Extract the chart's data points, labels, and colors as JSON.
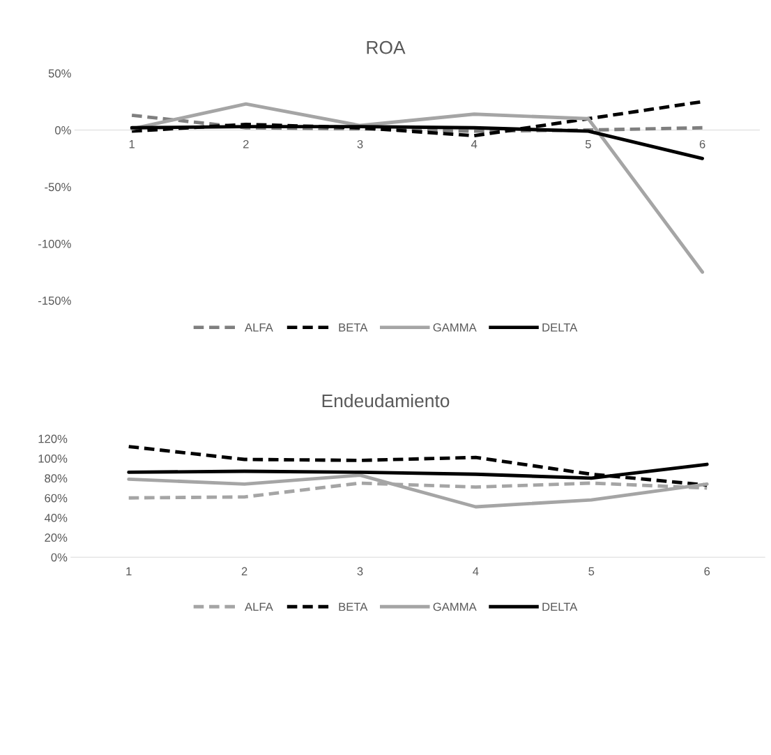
{
  "chart_data": [
    {
      "type": "line",
      "title": "ROA",
      "categories": [
        "1",
        "2",
        "3",
        "4",
        "5",
        "6"
      ],
      "series": [
        {
          "name": "ALFA",
          "color": "#7f7f7f",
          "line_style": "dashed",
          "values": [
            13,
            2,
            1,
            -1,
            0,
            2
          ]
        },
        {
          "name": "BETA",
          "color": "#000000",
          "line_style": "dashed",
          "values": [
            -1,
            5,
            2,
            -5,
            10,
            25
          ]
        },
        {
          "name": "GAMMA",
          "color": "#a5a5a5",
          "line_style": "solid",
          "values": [
            1,
            23,
            4,
            14,
            10,
            -125
          ]
        },
        {
          "name": "DELTA",
          "color": "#000000",
          "line_style": "solid",
          "values": [
            2,
            3,
            3,
            2,
            -1,
            -25
          ]
        }
      ],
      "ylim": [
        -150,
        50
      ],
      "yticks": [
        {
          "value": -150,
          "label": "-150%"
        },
        {
          "value": -100,
          "label": "-100%"
        },
        {
          "value": -50,
          "label": "-50%"
        },
        {
          "value": 0,
          "label": "0%"
        },
        {
          "value": 50,
          "label": "50%"
        }
      ],
      "legend": "bottom",
      "grid": false,
      "marker": "none"
    },
    {
      "type": "line",
      "title": "Endeudamiento",
      "categories": [
        "1",
        "2",
        "3",
        "4",
        "5",
        "6"
      ],
      "series": [
        {
          "name": "ALFA",
          "color": "#a5a5a5",
          "line_style": "dashed",
          "values": [
            60,
            61,
            75,
            71,
            75,
            70
          ]
        },
        {
          "name": "BETA",
          "color": "#000000",
          "line_style": "dashed",
          "values": [
            112,
            99,
            98,
            101,
            84,
            73
          ]
        },
        {
          "name": "GAMMA",
          "color": "#a5a5a5",
          "line_style": "solid",
          "values": [
            79,
            74,
            83,
            51,
            58,
            74
          ]
        },
        {
          "name": "DELTA",
          "color": "#000000",
          "line_style": "solid",
          "values": [
            86,
            87,
            86,
            84,
            80,
            94
          ]
        }
      ],
      "ylim": [
        0,
        120
      ],
      "yticks": [
        {
          "value": 0,
          "label": "0%"
        },
        {
          "value": 20,
          "label": "20%"
        },
        {
          "value": 40,
          "label": "40%"
        },
        {
          "value": 60,
          "label": "60%"
        },
        {
          "value": 80,
          "label": "80%"
        },
        {
          "value": 100,
          "label": "100%"
        },
        {
          "value": 120,
          "label": "120%"
        }
      ],
      "legend": "bottom",
      "grid": false,
      "marker": "none"
    }
  ]
}
